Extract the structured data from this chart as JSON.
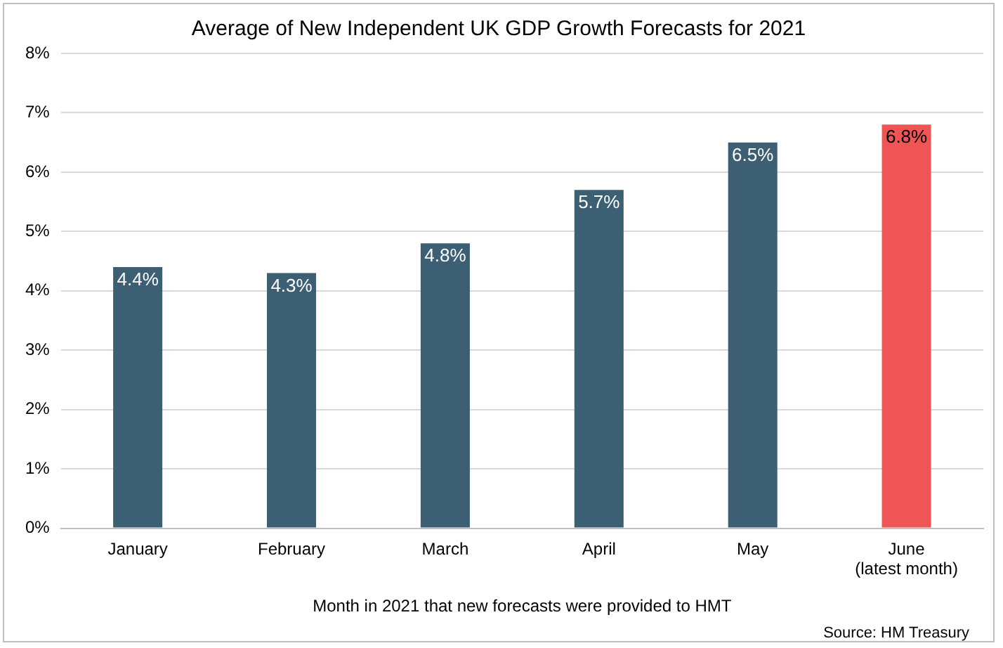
{
  "chart_data": {
    "type": "bar",
    "title": "Average of New Independent UK GDP Growth Forecasts for 2021",
    "xlabel": "Month in 2021 that new forecasts were provided to HMT",
    "categories": [
      "January",
      "February",
      "March",
      "April",
      "May",
      "June (latest month)"
    ],
    "values": [
      4.4,
      4.3,
      4.8,
      5.7,
      6.5,
      6.8
    ],
    "colors": [
      "#3d5f73",
      "#3d5f73",
      "#3d5f73",
      "#3d5f73",
      "#3d5f73",
      "#ef5554"
    ],
    "value_labels": [
      "4.4%",
      "4.3%",
      "4.8%",
      "5.7%",
      "6.5%",
      "6.8%"
    ],
    "ylim": [
      0,
      8
    ],
    "yticks": [
      {
        "value": 0,
        "label": "0%"
      },
      {
        "value": 1,
        "label": "1%"
      },
      {
        "value": 2,
        "label": "2%"
      },
      {
        "value": 3,
        "label": "3%"
      },
      {
        "value": 4,
        "label": "4%"
      },
      {
        "value": 5,
        "label": "5%"
      },
      {
        "value": 6,
        "label": "6%"
      },
      {
        "value": 7,
        "label": "7%"
      },
      {
        "value": 8,
        "label": "8%"
      }
    ],
    "grid": "y",
    "legend": false,
    "annotations": [
      "Source: HM Treasury"
    ]
  }
}
